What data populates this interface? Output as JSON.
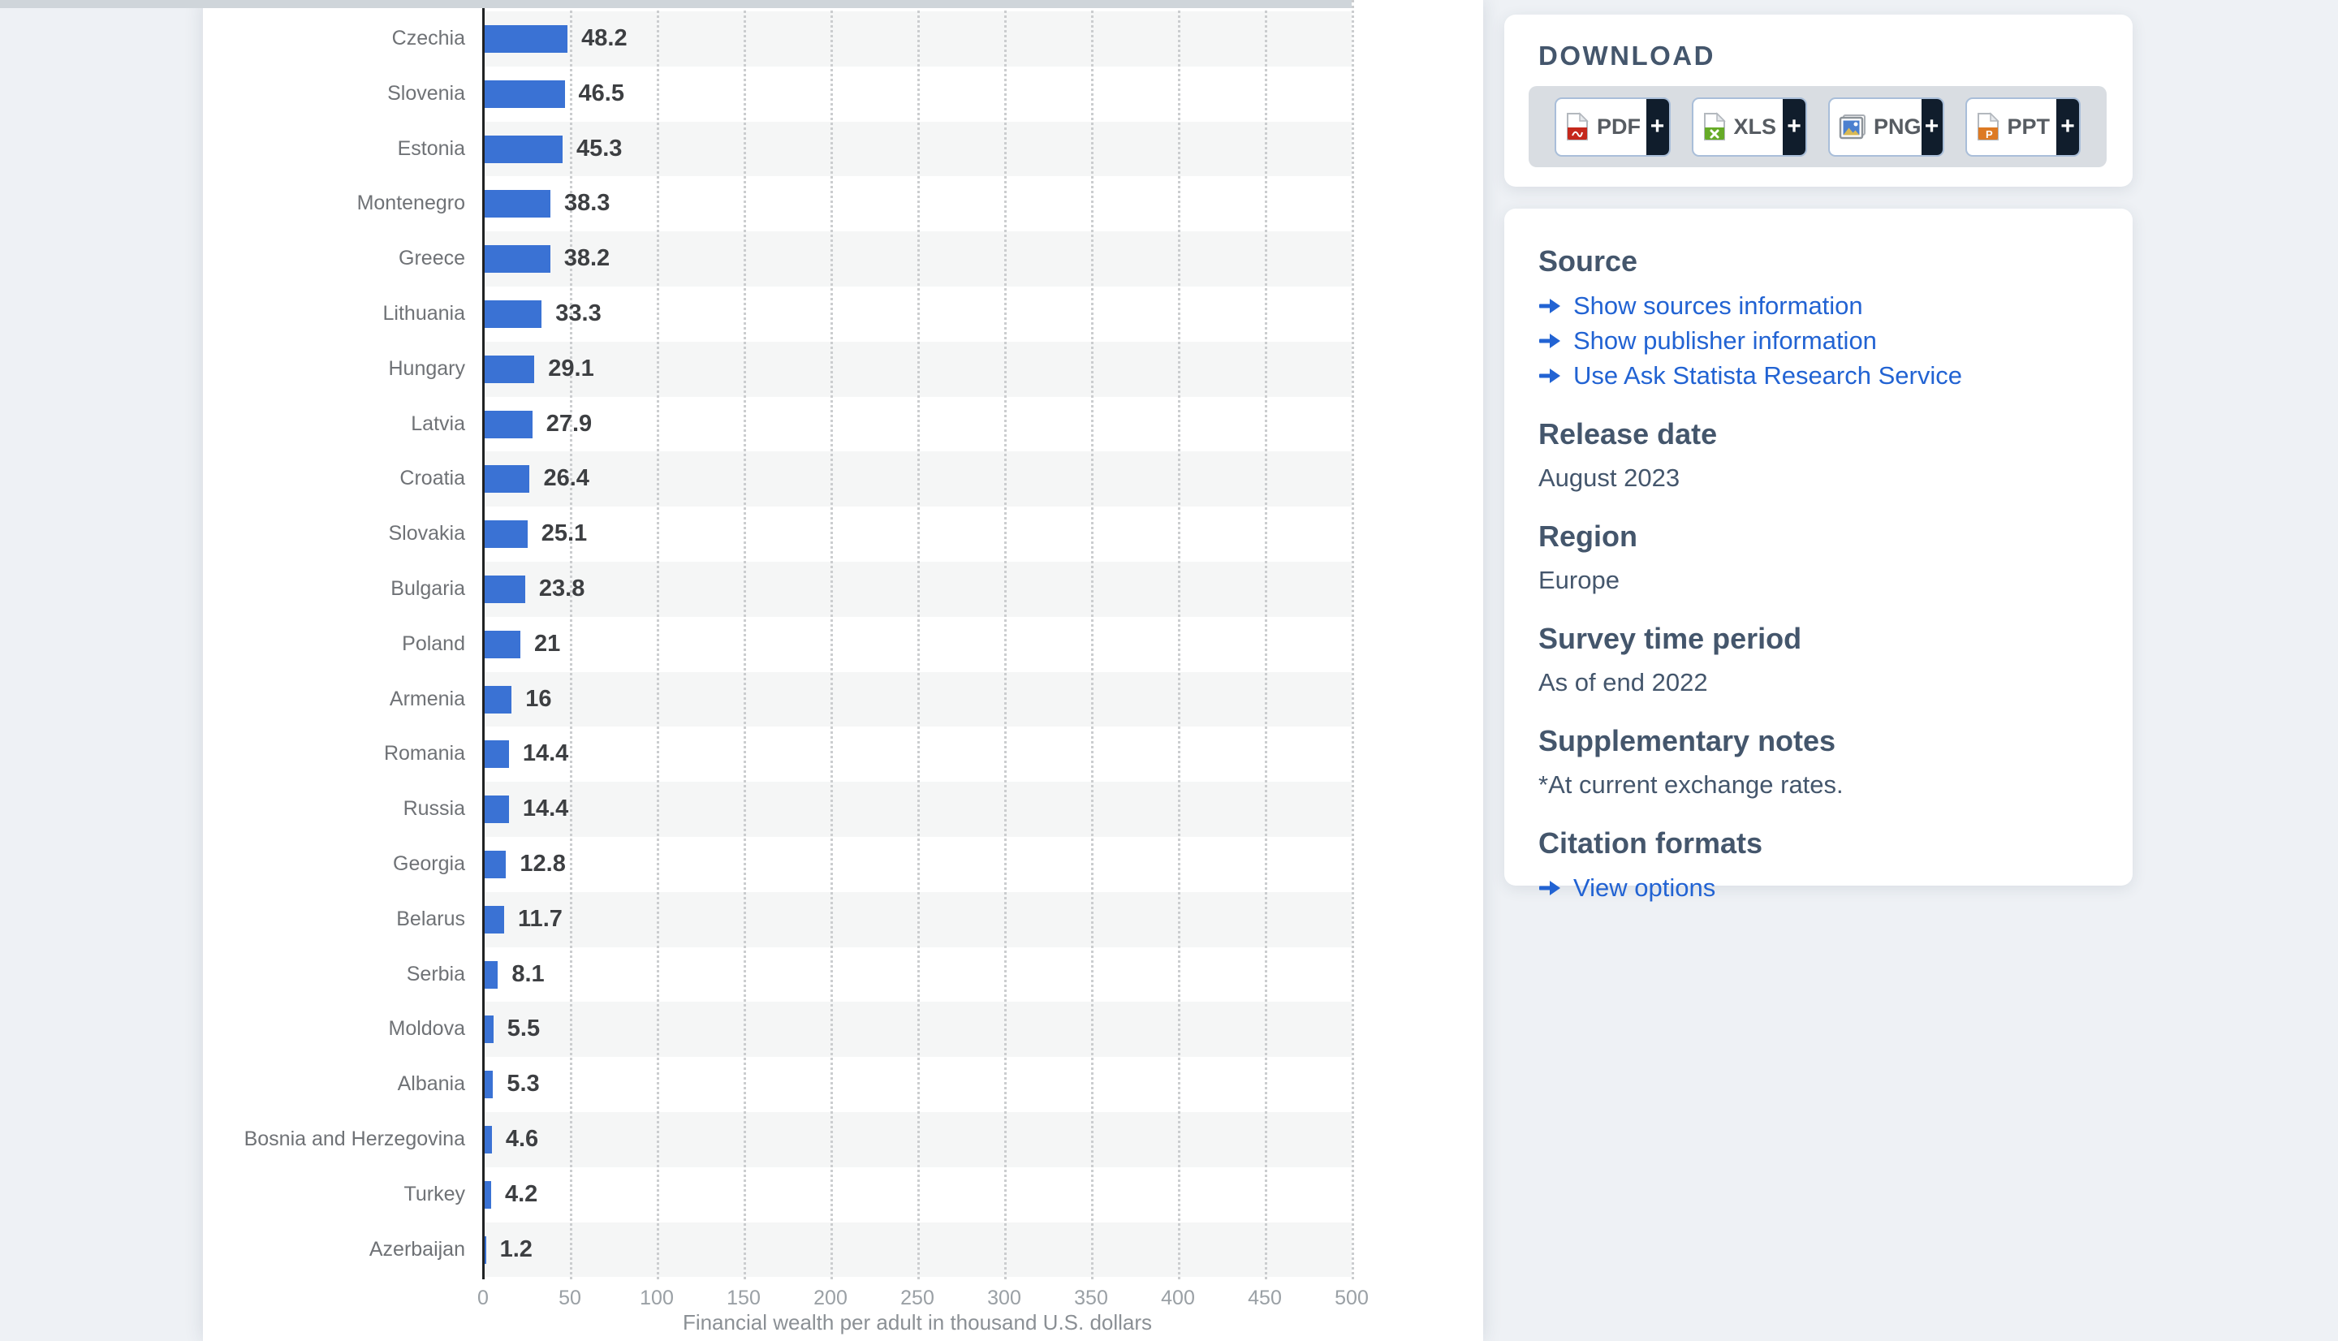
{
  "chart_data": {
    "type": "bar",
    "orientation": "horizontal",
    "categories": [
      "Czechia",
      "Slovenia",
      "Estonia",
      "Montenegro",
      "Greece",
      "Lithuania",
      "Hungary",
      "Latvia",
      "Croatia",
      "Slovakia",
      "Bulgaria",
      "Poland",
      "Armenia",
      "Romania",
      "Russia",
      "Georgia",
      "Belarus",
      "Serbia",
      "Moldova",
      "Albania",
      "Bosnia and Herzegovina",
      "Turkey",
      "Azerbaijan"
    ],
    "values": [
      48.2,
      46.5,
      45.3,
      38.3,
      38.2,
      33.3,
      29.1,
      27.9,
      26.4,
      25.1,
      23.8,
      21,
      16,
      14.4,
      14.4,
      12.8,
      11.7,
      8.1,
      5.5,
      5.3,
      4.6,
      4.2,
      1.2
    ],
    "value_labels": [
      "48.2",
      "46.5",
      "45.3",
      "38.3",
      "38.2",
      "33.3",
      "29.1",
      "27.9",
      "26.4",
      "25.1",
      "23.8",
      "21",
      "16",
      "14.4",
      "14.4",
      "12.8",
      "11.7",
      "8.1",
      "5.5",
      "5.3",
      "4.6",
      "4.2",
      "1.2"
    ],
    "xlabel": "Financial wealth per adult in thousand U.S. dollars",
    "x_ticks": [
      0,
      50,
      100,
      150,
      200,
      250,
      300,
      350,
      400,
      450,
      500
    ],
    "xlim": [
      0,
      500
    ],
    "grid": "dotted-vertical",
    "legend": "none",
    "row_striping": "alternating"
  },
  "download_panel": {
    "title": "DOWNLOAD",
    "buttons": [
      {
        "label": "PDF",
        "icon": "pdf-file-icon",
        "plus": "+"
      },
      {
        "label": "XLS",
        "icon": "xls-file-icon",
        "plus": "+"
      },
      {
        "label": "PNG",
        "icon": "png-image-icon",
        "plus": "+"
      },
      {
        "label": "PPT",
        "icon": "ppt-file-icon",
        "plus": "+"
      }
    ]
  },
  "info_panel": {
    "sections": [
      {
        "id": "source",
        "heading": "Source",
        "links": [
          "Show sources information",
          "Show publisher information",
          "Use Ask Statista Research Service"
        ]
      },
      {
        "id": "release-date",
        "heading": "Release date",
        "body": "August 2023"
      },
      {
        "id": "region",
        "heading": "Region",
        "body": "Europe"
      },
      {
        "id": "survey-time-period",
        "heading": "Survey time period",
        "body": "As of end 2022"
      },
      {
        "id": "supplementary-notes",
        "heading": "Supplementary notes",
        "body": "*At current exchange rates."
      },
      {
        "id": "citation-formats",
        "heading": "Citation formats",
        "links": [
          "View options"
        ]
      }
    ]
  },
  "colors": {
    "page_bg": "#EEF1F5",
    "card_bg": "#FFFFFF",
    "bar_color": "#3A72D4",
    "row_stripe": "#F5F6F6",
    "axis_line": "#202224",
    "grid_dot": "#CBCDCF",
    "country_label": "#6F7276",
    "value_label": "#3D3F42",
    "tick_gray": "#9AA0A5",
    "caption_gray": "#8B9095",
    "heading_slate": "#44566C",
    "link_blue": "#2263D3",
    "tray_gray": "#D9DDE2",
    "button_border": "#A9BED9",
    "button_dark": "#101D2C"
  }
}
